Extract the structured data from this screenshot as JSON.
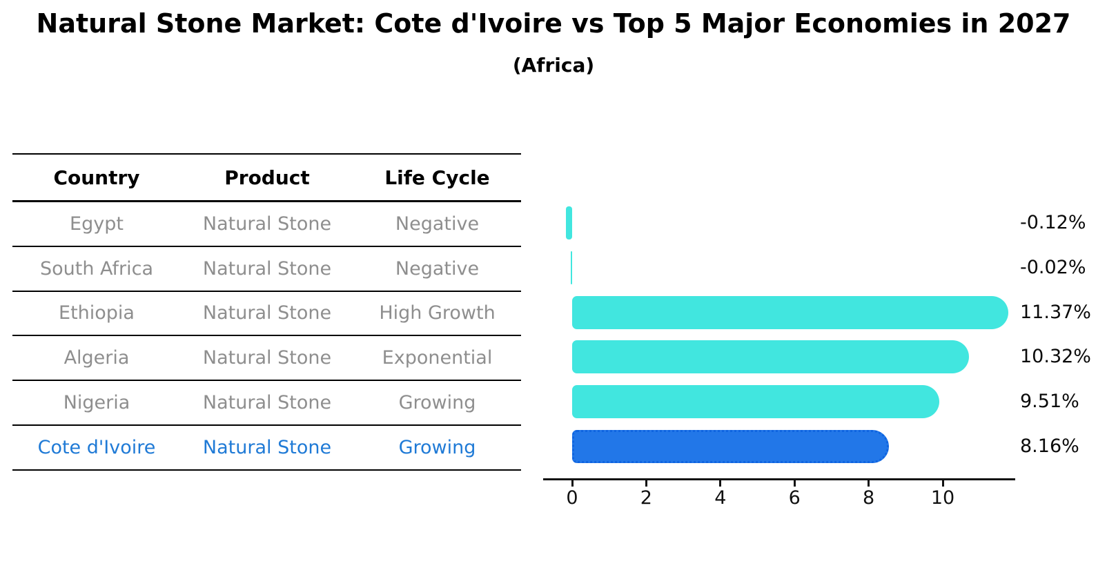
{
  "title": "Natural Stone Market: Cote d'Ivoire vs Top 5 Major Economies in 2027",
  "subtitle": "(Africa)",
  "table": {
    "headers": [
      "Country",
      "Product",
      "Life Cycle"
    ]
  },
  "rows": [
    {
      "country": "Egypt",
      "product": "Natural Stone",
      "life_cycle": "Negative",
      "value": -0.12,
      "label": "-0.12%",
      "highlight": false
    },
    {
      "country": "South Africa",
      "product": "Natural Stone",
      "life_cycle": "Negative",
      "value": -0.02,
      "label": "-0.02%",
      "highlight": false
    },
    {
      "country": "Ethiopia",
      "product": "Natural Stone",
      "life_cycle": "High Growth",
      "value": 11.37,
      "label": "11.37%",
      "highlight": false
    },
    {
      "country": "Algeria",
      "product": "Natural Stone",
      "life_cycle": "Exponential",
      "value": 10.32,
      "label": "10.32%",
      "highlight": false
    },
    {
      "country": "Nigeria",
      "product": "Natural Stone",
      "life_cycle": "Growing",
      "value": 9.51,
      "label": "9.51%",
      "highlight": false
    },
    {
      "country": "Cote d'Ivoire",
      "product": "Natural Stone",
      "life_cycle": "Growing",
      "value": 8.16,
      "label": "8.16%",
      "highlight": true
    }
  ],
  "chart_data": {
    "type": "bar",
    "orientation": "horizontal",
    "title": "Natural Stone Market: Cote d'Ivoire vs Top 5 Major Economies in 2027",
    "subtitle": "(Africa)",
    "categories": [
      "Egypt",
      "South Africa",
      "Ethiopia",
      "Algeria",
      "Nigeria",
      "Cote d'Ivoire"
    ],
    "values": [
      -0.12,
      -0.02,
      11.37,
      10.32,
      9.51,
      8.16
    ],
    "value_labels": [
      "-0.12%",
      "-0.02%",
      "11.37%",
      "10.32%",
      "9.51%",
      "8.16%"
    ],
    "xlabel": "",
    "ylabel": "",
    "xticks": [
      0,
      2,
      4,
      6,
      8,
      10
    ],
    "xlim": [
      -0.8,
      11.9
    ],
    "grid": false,
    "legend": false,
    "highlight_category": "Cote d'Ivoire",
    "colors": {
      "bar": "#41e6df",
      "highlight_bar": "#2277e8",
      "highlight_border": "#0f64e0",
      "highlight_text": "#1f7ad6",
      "table_text": "#8e8e8e",
      "header_text": "#000000",
      "axis": "#111111"
    }
  }
}
